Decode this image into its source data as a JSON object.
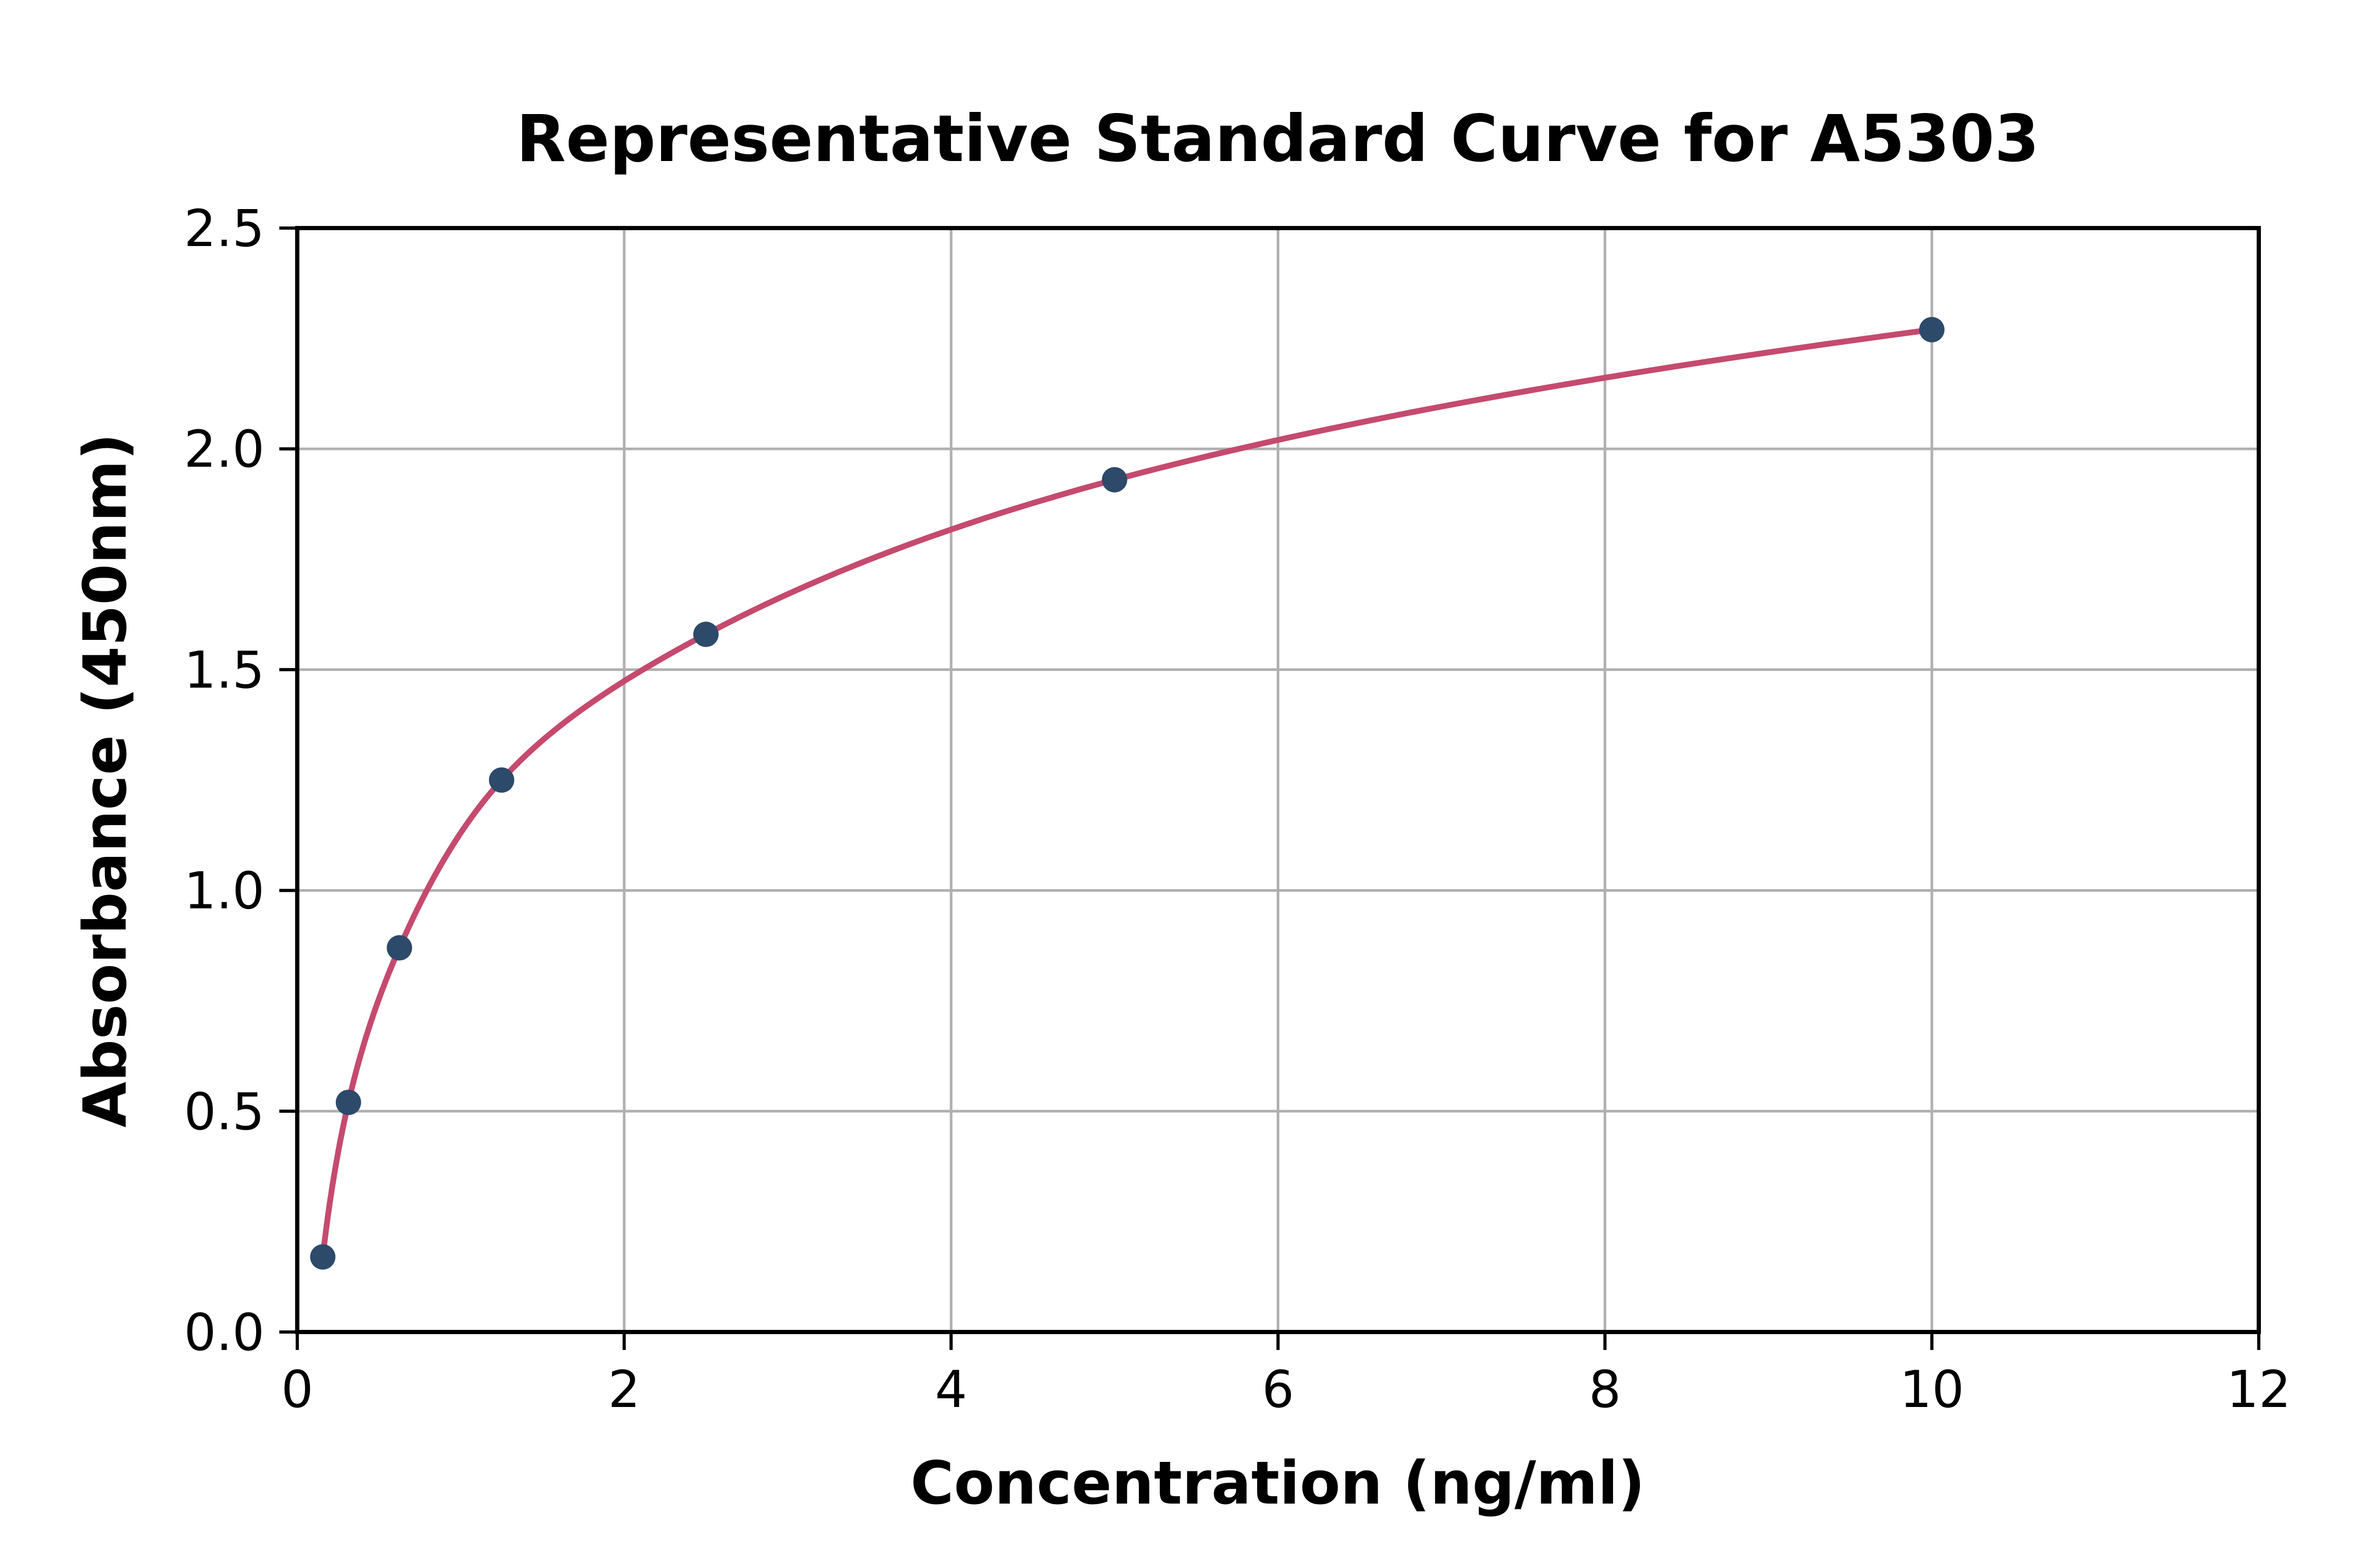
{
  "chart_data": {
    "type": "scatter",
    "title": "Representative Standard Curve for A5303",
    "xlabel": "Concentration (ng/ml)",
    "ylabel": "Absorbance (450nm)",
    "xlim": [
      0,
      12
    ],
    "ylim": [
      0,
      2.5
    ],
    "x_ticks": [
      0,
      2,
      4,
      6,
      8,
      10,
      12
    ],
    "y_ticks": [
      0.0,
      0.5,
      1.0,
      1.5,
      2.0,
      2.5
    ],
    "grid": true,
    "legend_position": "none",
    "series": [
      {
        "name": "standard-points",
        "type": "scatter",
        "x": [
          0.156,
          0.313,
          0.625,
          1.25,
          2.5,
          5,
          10
        ],
        "y": [
          0.17,
          0.52,
          0.87,
          1.25,
          1.58,
          1.93,
          2.27
        ],
        "color": "#2d4a6a"
      },
      {
        "name": "fitted-curve",
        "type": "line",
        "smooth": true,
        "x": [
          0.156,
          0.313,
          0.625,
          1.25,
          2.5,
          5,
          10
        ],
        "y": [
          0.17,
          0.52,
          0.87,
          1.25,
          1.58,
          1.93,
          2.27
        ],
        "color": "#c54a6e"
      }
    ],
    "colors": {
      "background": "#ffffff",
      "grid": "#b0b0b0",
      "spine": "#000000",
      "tick": "#000000",
      "text": "#000000"
    }
  }
}
